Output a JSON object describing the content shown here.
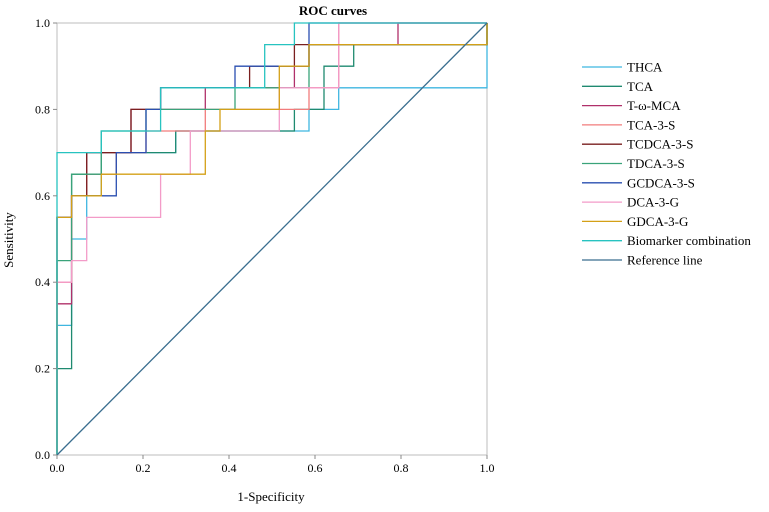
{
  "chart_data": {
    "type": "line",
    "title": "ROC curves",
    "xlabel": "1-Specificity",
    "ylabel": "Sensitivity",
    "xlim": [
      0,
      1
    ],
    "ylim": [
      0,
      1
    ],
    "x_ticks": [
      "0.0",
      "0.2",
      "0.4",
      "0.6",
      "0.8",
      "1.0"
    ],
    "y_ticks": [
      "0.0",
      "0.2",
      "0.4",
      "0.6",
      "0.8",
      "1.0"
    ],
    "grid": false,
    "legend_position": "right",
    "series": [
      {
        "name": "THCA",
        "color": "#3fb6e0",
        "points": [
          [
            0,
            0
          ],
          [
            0,
            0.3
          ],
          [
            0.034,
            0.3
          ],
          [
            0.034,
            0.5
          ],
          [
            0.069,
            0.5
          ],
          [
            0.069,
            0.6
          ],
          [
            0.103,
            0.6
          ],
          [
            0.103,
            0.65
          ],
          [
            0.138,
            0.65
          ],
          [
            0.138,
            0.7
          ],
          [
            0.276,
            0.7
          ],
          [
            0.276,
            0.75
          ],
          [
            0.586,
            0.75
          ],
          [
            0.586,
            0.8
          ],
          [
            0.655,
            0.8
          ],
          [
            0.655,
            0.85
          ],
          [
            1,
            0.85
          ],
          [
            1,
            1
          ]
        ]
      },
      {
        "name": "TCA",
        "color": "#1f8a70",
        "points": [
          [
            0,
            0
          ],
          [
            0,
            0.2
          ],
          [
            0.034,
            0.2
          ],
          [
            0.034,
            0.65
          ],
          [
            0.103,
            0.65
          ],
          [
            0.103,
            0.7
          ],
          [
            0.276,
            0.7
          ],
          [
            0.276,
            0.75
          ],
          [
            0.552,
            0.75
          ],
          [
            0.552,
            0.8
          ],
          [
            0.621,
            0.8
          ],
          [
            0.621,
            0.9
          ],
          [
            0.69,
            0.9
          ],
          [
            0.69,
            0.95
          ],
          [
            1,
            0.95
          ],
          [
            1,
            1
          ]
        ]
      },
      {
        "name": "T-ω-MCA",
        "color": "#b0306a",
        "points": [
          [
            0,
            0
          ],
          [
            0,
            0.35
          ],
          [
            0.034,
            0.35
          ],
          [
            0.034,
            0.6
          ],
          [
            0.069,
            0.6
          ],
          [
            0.069,
            0.7
          ],
          [
            0.172,
            0.7
          ],
          [
            0.172,
            0.8
          ],
          [
            0.345,
            0.8
          ],
          [
            0.345,
            0.85
          ],
          [
            0.552,
            0.85
          ],
          [
            0.552,
            0.9
          ],
          [
            0.586,
            0.9
          ],
          [
            0.586,
            0.95
          ],
          [
            0.793,
            0.95
          ],
          [
            0.793,
            1
          ],
          [
            1,
            1
          ]
        ]
      },
      {
        "name": "TCA-3-S",
        "color": "#f27c7c",
        "points": [
          [
            0,
            0
          ],
          [
            0,
            0.4
          ],
          [
            0.034,
            0.4
          ],
          [
            0.034,
            0.6
          ],
          [
            0.069,
            0.6
          ],
          [
            0.069,
            0.65
          ],
          [
            0.138,
            0.65
          ],
          [
            0.138,
            0.7
          ],
          [
            0.207,
            0.7
          ],
          [
            0.207,
            0.75
          ],
          [
            0.345,
            0.75
          ],
          [
            0.345,
            0.8
          ],
          [
            0.586,
            0.8
          ],
          [
            0.586,
            0.85
          ],
          [
            0.655,
            0.85
          ],
          [
            0.655,
            1
          ],
          [
            1,
            1
          ]
        ]
      },
      {
        "name": "TCDCA-3-S",
        "color": "#7a1f1f",
        "points": [
          [
            0,
            0
          ],
          [
            0,
            0.55
          ],
          [
            0.034,
            0.55
          ],
          [
            0.034,
            0.6
          ],
          [
            0.069,
            0.6
          ],
          [
            0.069,
            0.7
          ],
          [
            0.172,
            0.7
          ],
          [
            0.172,
            0.8
          ],
          [
            0.241,
            0.8
          ],
          [
            0.241,
            0.85
          ],
          [
            0.448,
            0.85
          ],
          [
            0.448,
            0.9
          ],
          [
            0.552,
            0.9
          ],
          [
            0.552,
            0.95
          ],
          [
            1,
            0.95
          ],
          [
            1,
            1
          ]
        ]
      },
      {
        "name": "TDCA-3-S",
        "color": "#3aa37a",
        "points": [
          [
            0,
            0
          ],
          [
            0,
            0.45
          ],
          [
            0.034,
            0.45
          ],
          [
            0.034,
            0.65
          ],
          [
            0.103,
            0.65
          ],
          [
            0.103,
            0.75
          ],
          [
            0.207,
            0.75
          ],
          [
            0.207,
            0.8
          ],
          [
            0.414,
            0.8
          ],
          [
            0.414,
            0.85
          ],
          [
            0.586,
            0.85
          ],
          [
            0.586,
            0.95
          ],
          [
            1,
            0.95
          ],
          [
            1,
            1
          ]
        ]
      },
      {
        "name": "GCDCA-3-S",
        "color": "#2a4fb0",
        "points": [
          [
            0,
            0
          ],
          [
            0,
            0.55
          ],
          [
            0.034,
            0.55
          ],
          [
            0.034,
            0.6
          ],
          [
            0.138,
            0.6
          ],
          [
            0.138,
            0.7
          ],
          [
            0.207,
            0.7
          ],
          [
            0.207,
            0.8
          ],
          [
            0.241,
            0.8
          ],
          [
            0.241,
            0.85
          ],
          [
            0.414,
            0.85
          ],
          [
            0.414,
            0.9
          ],
          [
            0.586,
            0.9
          ],
          [
            0.586,
            1
          ],
          [
            1,
            1
          ]
        ]
      },
      {
        "name": "DCA-3-G",
        "color": "#f39bc8",
        "points": [
          [
            0,
            0
          ],
          [
            0,
            0.4
          ],
          [
            0.034,
            0.4
          ],
          [
            0.034,
            0.45
          ],
          [
            0.069,
            0.45
          ],
          [
            0.069,
            0.55
          ],
          [
            0.241,
            0.55
          ],
          [
            0.241,
            0.65
          ],
          [
            0.31,
            0.65
          ],
          [
            0.31,
            0.75
          ],
          [
            0.517,
            0.75
          ],
          [
            0.517,
            0.85
          ],
          [
            0.655,
            0.85
          ],
          [
            0.655,
            1
          ],
          [
            1,
            1
          ]
        ]
      },
      {
        "name": "GDCA-3-G",
        "color": "#d4a017",
        "points": [
          [
            0,
            0
          ],
          [
            0,
            0.55
          ],
          [
            0.034,
            0.55
          ],
          [
            0.034,
            0.6
          ],
          [
            0.103,
            0.6
          ],
          [
            0.103,
            0.65
          ],
          [
            0.241,
            0.65
          ],
          [
            0.241,
            0.65
          ],
          [
            0.345,
            0.65
          ],
          [
            0.345,
            0.75
          ],
          [
            0.379,
            0.75
          ],
          [
            0.379,
            0.8
          ],
          [
            0.517,
            0.8
          ],
          [
            0.517,
            0.9
          ],
          [
            0.586,
            0.9
          ],
          [
            0.586,
            0.95
          ],
          [
            1,
            0.95
          ],
          [
            1,
            1
          ]
        ]
      },
      {
        "name": "Biomarker combination",
        "color": "#27c3c0",
        "points": [
          [
            0,
            0
          ],
          [
            0,
            0.7
          ],
          [
            0.069,
            0.7
          ],
          [
            0.069,
            0.7
          ],
          [
            0.103,
            0.7
          ],
          [
            0.103,
            0.75
          ],
          [
            0.241,
            0.75
          ],
          [
            0.241,
            0.85
          ],
          [
            0.483,
            0.85
          ],
          [
            0.483,
            0.95
          ],
          [
            0.552,
            0.95
          ],
          [
            0.552,
            1
          ],
          [
            1,
            1
          ]
        ]
      },
      {
        "name": "Reference line",
        "color": "#3a6e8f",
        "points": [
          [
            0,
            0
          ],
          [
            1,
            1
          ]
        ]
      }
    ]
  }
}
